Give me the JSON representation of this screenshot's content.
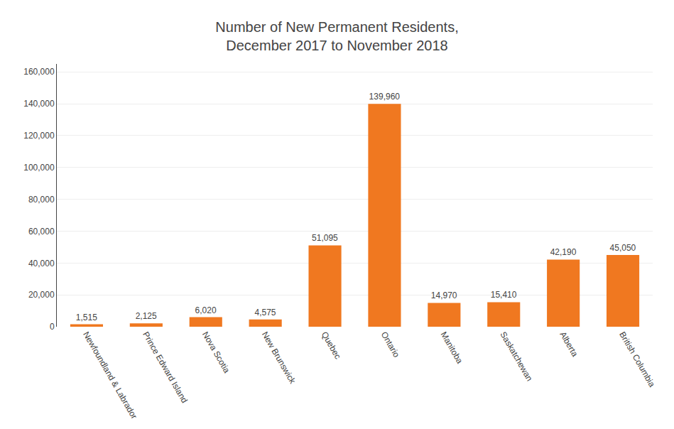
{
  "chart_data": {
    "type": "bar",
    "title": "Number of New Permanent Residents,\nDecember 2017 to November 2018",
    "categories": [
      "Newfoundland & Labrador",
      "Prince Edward Island",
      "Nova Scotia",
      "New Brunswick",
      "Quebec",
      "Ontario",
      "Manitoba",
      "Saskatchewan",
      "Alberta",
      "British Columbia"
    ],
    "values": [
      1515,
      2125,
      6020,
      4575,
      51095,
      139960,
      14970,
      15410,
      42190,
      45050
    ],
    "value_labels": [
      "1,515",
      "2,125",
      "6,020",
      "4,575",
      "51,095",
      "139,960",
      "14,970",
      "15,410",
      "42,190",
      "45,050"
    ],
    "data_labels": true,
    "color": "#F07820",
    "ylim": [
      0,
      165000
    ],
    "yticks": [
      0,
      {
        "value": 20000,
        "label": "20,000"
      },
      {
        "value": 40000,
        "label": "40,000"
      },
      {
        "value": 60000,
        "label": "60,000"
      },
      {
        "value": 80000,
        "label": "80,000"
      },
      {
        "value": 100000,
        "label": "100,000"
      },
      {
        "value": 120000,
        "label": "120,000"
      },
      {
        "value": 140000,
        "label": "140,000"
      },
      {
        "value": 160000,
        "label": "160,000"
      }
    ],
    "grid": true
  }
}
